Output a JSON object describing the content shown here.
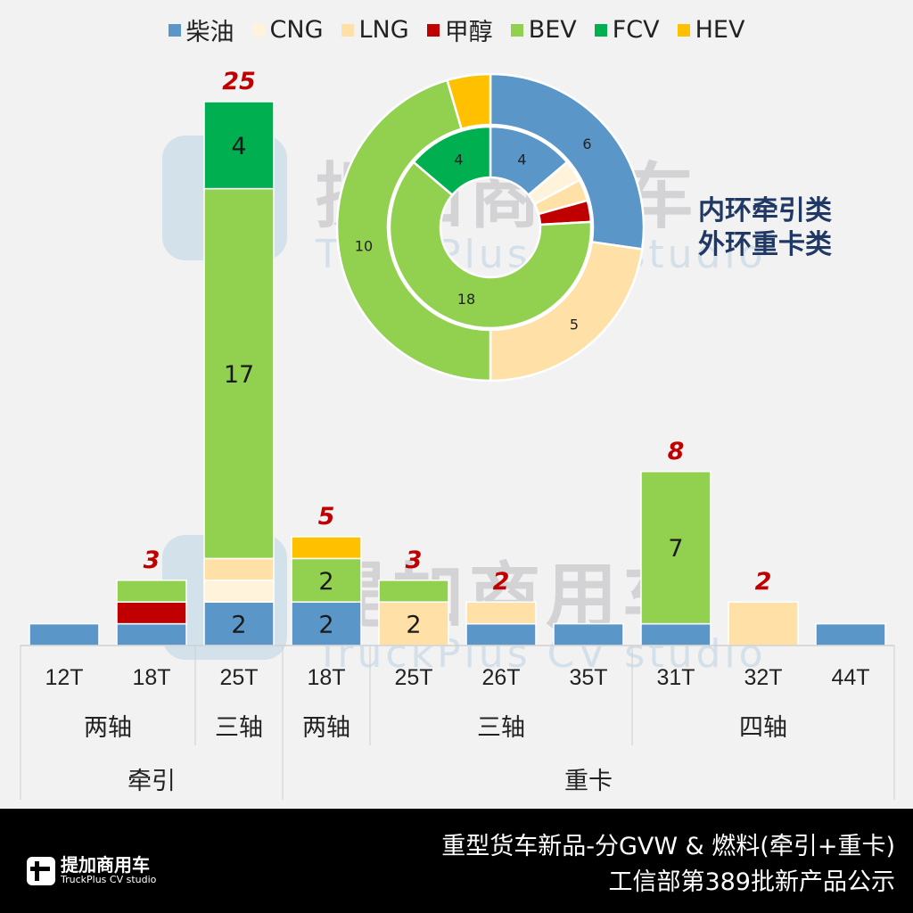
{
  "legend": [
    {
      "name": "柴油",
      "color": "#5b96c8"
    },
    {
      "name": "CNG",
      "color": "#fff3dc"
    },
    {
      "name": "LNG",
      "color": "#ffe0a6"
    },
    {
      "name": "甲醇",
      "color": "#c00000"
    },
    {
      "name": "BEV",
      "color": "#92d050"
    },
    {
      "name": "FCV",
      "color": "#00b050"
    },
    {
      "name": "HEV",
      "color": "#ffc000"
    }
  ],
  "watermark": {
    "name": "提加商用车",
    "sub": "TruckPlus CV studio"
  },
  "ring_note": {
    "line1": "内环牵引类",
    "line2": "外环重卡类"
  },
  "footer": {
    "title": "重型货车新品-分GVW & 燃料(牵引+重卡)",
    "subtitle": "工信部第389批新产品公示",
    "logo_name": "提加商用车",
    "logo_sub": "TruckPlus CV studio"
  },
  "chart_data": [
    {
      "type": "bar",
      "stacked": true,
      "categories": [
        "12T",
        "18T",
        "25T",
        "18T",
        "25T",
        "26T",
        "35T",
        "31T",
        "32T",
        "44T"
      ],
      "axle_groups": [
        {
          "label": "两轴",
          "span": 2
        },
        {
          "label": "三轴",
          "span": 1
        },
        {
          "label": "两轴",
          "span": 1
        },
        {
          "label": "三轴",
          "span": 3
        },
        {
          "label": "四轴",
          "span": 3
        }
      ],
      "type_groups": [
        {
          "label": "牵引",
          "span": 3
        },
        {
          "label": "重卡",
          "span": 7
        }
      ],
      "series": [
        {
          "name": "柴油",
          "values": [
            1,
            1,
            2,
            2,
            0,
            1,
            1,
            1,
            0,
            1
          ]
        },
        {
          "name": "CNG",
          "values": [
            0,
            0,
            1,
            0,
            0,
            0,
            0,
            0,
            0,
            0
          ]
        },
        {
          "name": "LNG",
          "values": [
            0,
            0,
            1,
            0,
            2,
            1,
            0,
            0,
            2,
            0
          ]
        },
        {
          "name": "甲醇",
          "values": [
            0,
            1,
            0,
            0,
            0,
            0,
            0,
            0,
            0,
            0
          ]
        },
        {
          "name": "BEV",
          "values": [
            0,
            1,
            17,
            2,
            1,
            0,
            0,
            7,
            0,
            0
          ]
        },
        {
          "name": "FCV",
          "values": [
            0,
            0,
            4,
            0,
            0,
            0,
            0,
            0,
            0,
            0
          ]
        },
        {
          "name": "HEV",
          "values": [
            0,
            0,
            0,
            1,
            0,
            0,
            0,
            0,
            0,
            0
          ]
        }
      ],
      "segment_labels_shown": [
        [
          2,
          "柴油"
        ],
        [
          2,
          "BEV"
        ],
        [
          2,
          "FCV"
        ],
        [
          3,
          "柴油"
        ],
        [
          3,
          "BEV"
        ],
        [
          4,
          "LNG"
        ],
        [
          7,
          "BEV"
        ]
      ],
      "totals": [
        "",
        "3",
        "25",
        "5",
        "3",
        "2",
        "",
        "8",
        "2",
        ""
      ]
    },
    {
      "type": "pie",
      "donut": true,
      "inner_ring": {
        "label": "牵引",
        "slices": [
          {
            "name": "柴油",
            "value": 4,
            "label": "4"
          },
          {
            "name": "CNG",
            "value": 1,
            "label": ""
          },
          {
            "name": "LNG",
            "value": 1,
            "label": ""
          },
          {
            "name": "甲醇",
            "value": 1,
            "label": ""
          },
          {
            "name": "BEV",
            "value": 18,
            "label": "18"
          },
          {
            "name": "FCV",
            "value": 4,
            "label": "4"
          }
        ]
      },
      "outer_ring": {
        "label": "重卡",
        "slices": [
          {
            "name": "柴油",
            "value": 6,
            "label": "6"
          },
          {
            "name": "LNG",
            "value": 5,
            "label": "5"
          },
          {
            "name": "BEV",
            "value": 10,
            "label": "10"
          },
          {
            "name": "HEV",
            "value": 1,
            "label": ""
          }
        ]
      }
    }
  ]
}
